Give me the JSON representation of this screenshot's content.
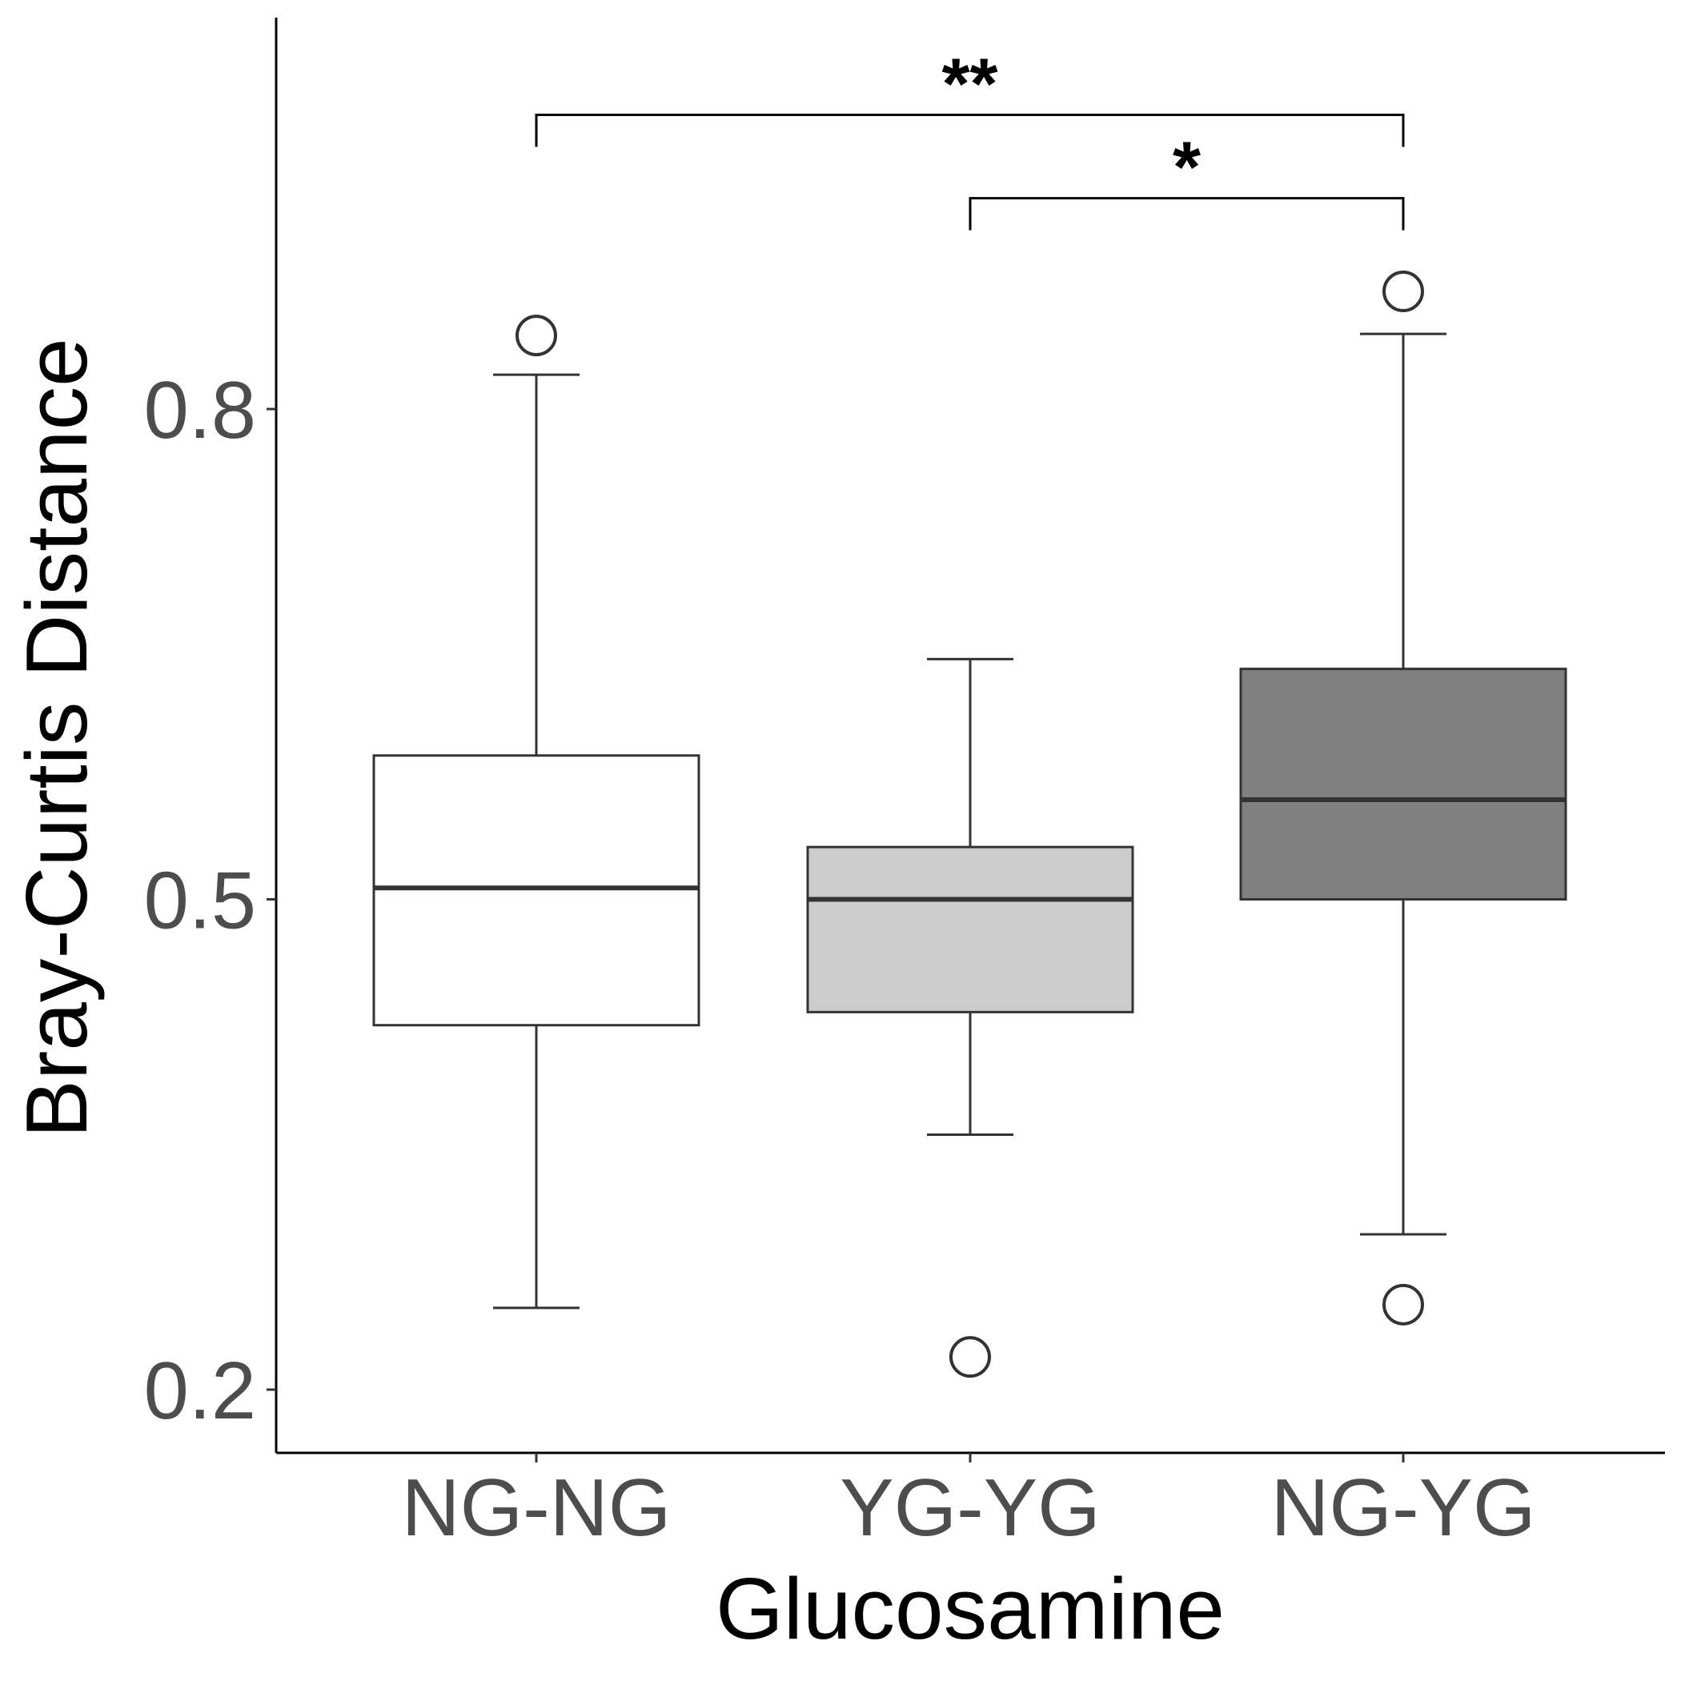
{
  "chart_data": {
    "type": "box",
    "title": "",
    "xlabel": "Glucosamine",
    "ylabel": "Bray-Curtis Distance",
    "ylim": [
      0.16,
      1.04
    ],
    "yticks": [
      {
        "value": 0.2,
        "label": "0.2"
      },
      {
        "value": 0.5,
        "label": "0.5"
      },
      {
        "value": 0.8,
        "label": "0.8"
      }
    ],
    "grid": false,
    "legend": "none",
    "categories": [
      "NG-NG",
      "YG-YG",
      "NG-YG"
    ],
    "boxes": [
      {
        "category": "NG-NG",
        "whisker_low": 0.25,
        "q1": 0.423,
        "median": 0.507,
        "q3": 0.588,
        "whisker_high": 0.821,
        "outliers": [
          0.845
        ],
        "fill": "#ffffff"
      },
      {
        "category": "YG-YG",
        "whisker_low": 0.356,
        "q1": 0.431,
        "median": 0.5,
        "q3": 0.532,
        "whisker_high": 0.647,
        "outliers": [
          0.22
        ],
        "fill": "#cccccc"
      },
      {
        "category": "NG-YG",
        "whisker_low": 0.295,
        "q1": 0.5,
        "median": 0.561,
        "q3": 0.641,
        "whisker_high": 0.846,
        "outliers": [
          0.872,
          0.252
        ],
        "fill": "#808080"
      }
    ],
    "significance": [
      {
        "from": "NG-NG",
        "to": "NG-YG",
        "label": "**",
        "y": 0.98
      },
      {
        "from": "YG-YG",
        "to": "NG-YG",
        "label": "*",
        "y": 0.929
      }
    ]
  }
}
